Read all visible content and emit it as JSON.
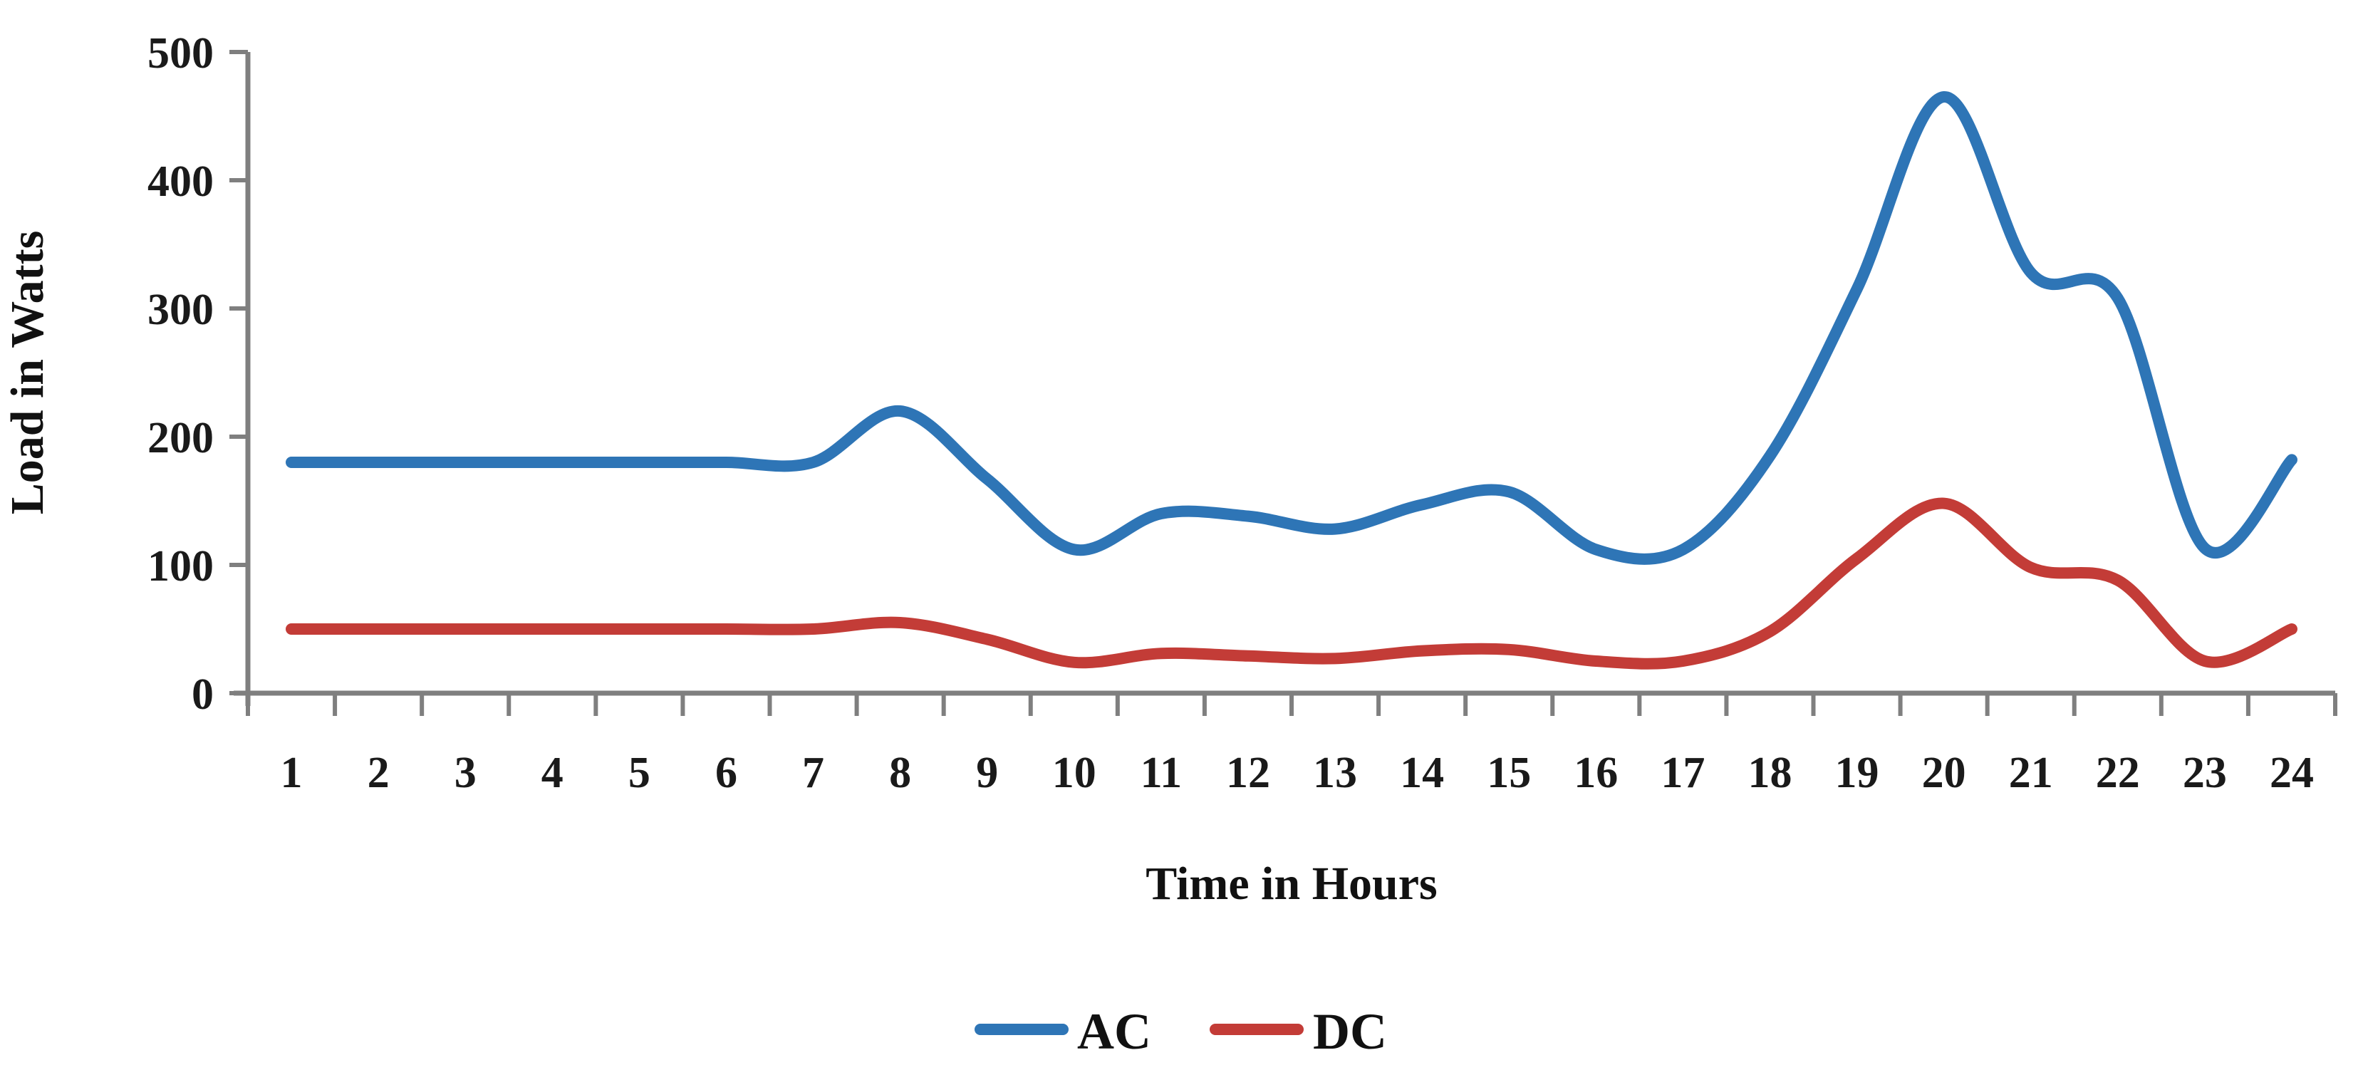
{
  "chart_data": {
    "type": "line",
    "smoothed": true,
    "title": "",
    "xlabel": "Time in Hours",
    "ylabel": "Load in Watts",
    "categories": [
      1,
      2,
      3,
      4,
      5,
      6,
      7,
      8,
      9,
      10,
      11,
      12,
      13,
      14,
      15,
      16,
      17,
      18,
      19,
      20,
      21,
      22,
      23,
      24
    ],
    "series": [
      {
        "name": "AC",
        "color": "#2E75B6",
        "values": [
          180,
          180,
          180,
          180,
          180,
          180,
          180,
          220,
          167,
          112,
          140,
          138,
          128,
          147,
          157,
          112,
          112,
          185,
          315,
          465,
          328,
          308,
          113,
          182
        ]
      },
      {
        "name": "DC",
        "color": "#C33C37",
        "values": [
          50,
          50,
          50,
          50,
          50,
          50,
          50,
          55,
          42,
          24,
          31,
          29,
          27,
          33,
          34,
          25,
          25,
          48,
          105,
          148,
          98,
          88,
          25,
          50
        ]
      }
    ],
    "ylim": [
      0,
      500
    ],
    "yticks": [
      0,
      100,
      200,
      300,
      400,
      500
    ],
    "grid": false,
    "legend_position": "bottom",
    "axis_color": "#7F7F7F",
    "background": "#FFFFFF"
  }
}
